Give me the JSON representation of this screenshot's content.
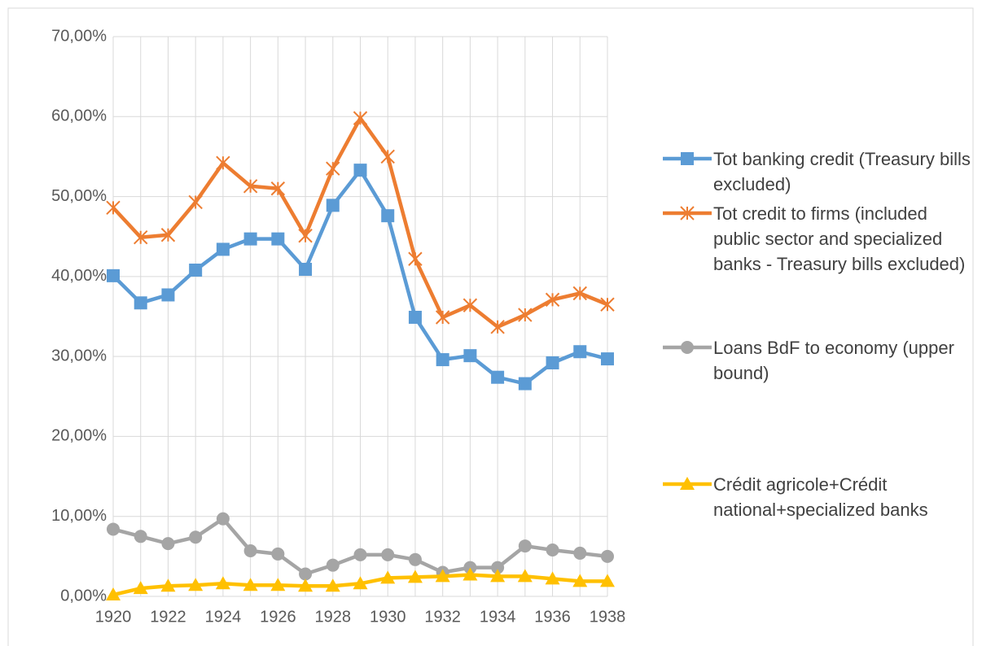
{
  "chart_data": {
    "type": "line",
    "categories": [
      1920,
      null,
      1922,
      null,
      1924,
      null,
      1926,
      null,
      1928,
      null,
      1930,
      null,
      1932,
      null,
      1934,
      null,
      1936,
      null,
      1938
    ],
    "ylim": [
      0,
      70
    ],
    "yticks": [
      {
        "value": 0,
        "label": "0,00%"
      },
      {
        "value": 10,
        "label": "10,00%"
      },
      {
        "value": 20,
        "label": "20,00%"
      },
      {
        "value": 30,
        "label": "30,00%"
      },
      {
        "value": 40,
        "label": "40,00%"
      },
      {
        "value": 50,
        "label": "50,00%"
      },
      {
        "value": 60,
        "label": "60,00%"
      },
      {
        "value": 70,
        "label": "70,00%"
      }
    ],
    "grid": true,
    "legend": "right",
    "series": [
      {
        "name": "Tot banking credit (Treasury bills excluded)",
        "color": "#5b9bd5",
        "marker": "square",
        "values": [
          40.1,
          36.7,
          37.7,
          40.8,
          43.4,
          44.7,
          44.7,
          40.9,
          48.9,
          53.3,
          47.6,
          34.9,
          29.6,
          30.1,
          27.4,
          26.6,
          29.2,
          30.6,
          29.7
        ]
      },
      {
        "name": "Tot credit to firms (included public sector and specialized banks - Treasury bills excluded)",
        "color": "#ed7d31",
        "marker": "star",
        "values": [
          48.6,
          44.9,
          45.2,
          49.3,
          54.2,
          51.3,
          51.0,
          45.1,
          53.5,
          59.8,
          55.0,
          42.2,
          34.9,
          36.4,
          33.7,
          35.2,
          37.1,
          37.9,
          36.5
        ]
      },
      {
        "name": "Loans BdF to economy (upper bound)",
        "color": "#a5a5a5",
        "marker": "circle",
        "values": [
          8.4,
          7.5,
          6.6,
          7.4,
          9.7,
          5.7,
          5.3,
          2.8,
          3.9,
          5.2,
          5.2,
          4.6,
          3.0,
          3.6,
          3.6,
          6.3,
          5.8,
          5.4,
          5.0
        ]
      },
      {
        "name": "Crédit agricole+Crédit national+specialized banks",
        "color": "#ffc000",
        "marker": "triangle",
        "values": [
          0.2,
          1.0,
          1.3,
          1.4,
          1.6,
          1.4,
          1.4,
          1.3,
          1.3,
          1.6,
          2.3,
          2.4,
          2.5,
          2.7,
          2.5,
          2.5,
          2.2,
          1.9,
          1.9
        ]
      }
    ]
  }
}
